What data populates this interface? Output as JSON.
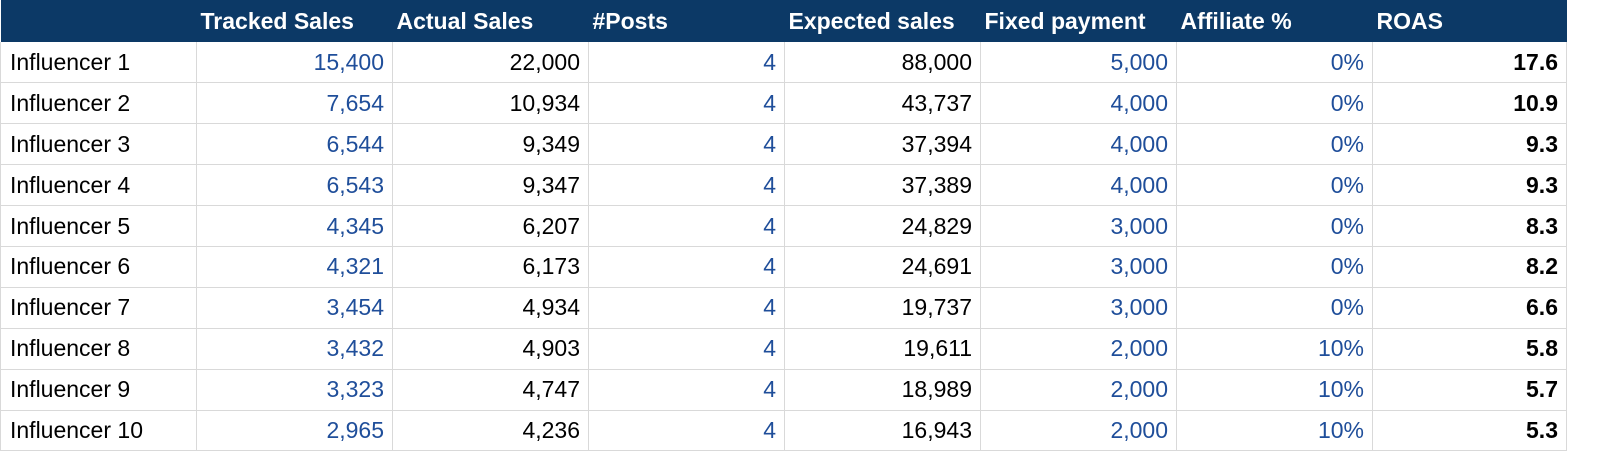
{
  "colors": {
    "header_bg": "#0c3966",
    "header_text": "#ffffff",
    "input_blue": "#1f4e9a",
    "grid_line": "#d9d9d9"
  },
  "headers": [
    "",
    "Tracked Sales",
    "Actual Sales",
    "#Posts",
    "Expected sales",
    "Fixed payment",
    "Affiliate %",
    "ROAS"
  ],
  "rows": [
    {
      "name": "Influencer 1",
      "tracked": "15,400",
      "actual": "22,000",
      "posts": "4",
      "expected": "88,000",
      "fixed": "5,000",
      "affiliate": "0%",
      "roas": "17.6"
    },
    {
      "name": "Influencer 2",
      "tracked": "7,654",
      "actual": "10,934",
      "posts": "4",
      "expected": "43,737",
      "fixed": "4,000",
      "affiliate": "0%",
      "roas": "10.9"
    },
    {
      "name": "Influencer 3",
      "tracked": "6,544",
      "actual": "9,349",
      "posts": "4",
      "expected": "37,394",
      "fixed": "4,000",
      "affiliate": "0%",
      "roas": "9.3"
    },
    {
      "name": "Influencer 4",
      "tracked": "6,543",
      "actual": "9,347",
      "posts": "4",
      "expected": "37,389",
      "fixed": "4,000",
      "affiliate": "0%",
      "roas": "9.3"
    },
    {
      "name": "Influencer 5",
      "tracked": "4,345",
      "actual": "6,207",
      "posts": "4",
      "expected": "24,829",
      "fixed": "3,000",
      "affiliate": "0%",
      "roas": "8.3"
    },
    {
      "name": "Influencer 6",
      "tracked": "4,321",
      "actual": "6,173",
      "posts": "4",
      "expected": "24,691",
      "fixed": "3,000",
      "affiliate": "0%",
      "roas": "8.2"
    },
    {
      "name": "Influencer 7",
      "tracked": "3,454",
      "actual": "4,934",
      "posts": "4",
      "expected": "19,737",
      "fixed": "3,000",
      "affiliate": "0%",
      "roas": "6.6"
    },
    {
      "name": "Influencer 8",
      "tracked": "3,432",
      "actual": "4,903",
      "posts": "4",
      "expected": "19,611",
      "fixed": "2,000",
      "affiliate": "10%",
      "roas": "5.8"
    },
    {
      "name": "Influencer 9",
      "tracked": "3,323",
      "actual": "4,747",
      "posts": "4",
      "expected": "18,989",
      "fixed": "2,000",
      "affiliate": "10%",
      "roas": "5.7"
    },
    {
      "name": "Influencer 10",
      "tracked": "2,965",
      "actual": "4,236",
      "posts": "4",
      "expected": "16,943",
      "fixed": "2,000",
      "affiliate": "10%",
      "roas": "5.3"
    }
  ]
}
